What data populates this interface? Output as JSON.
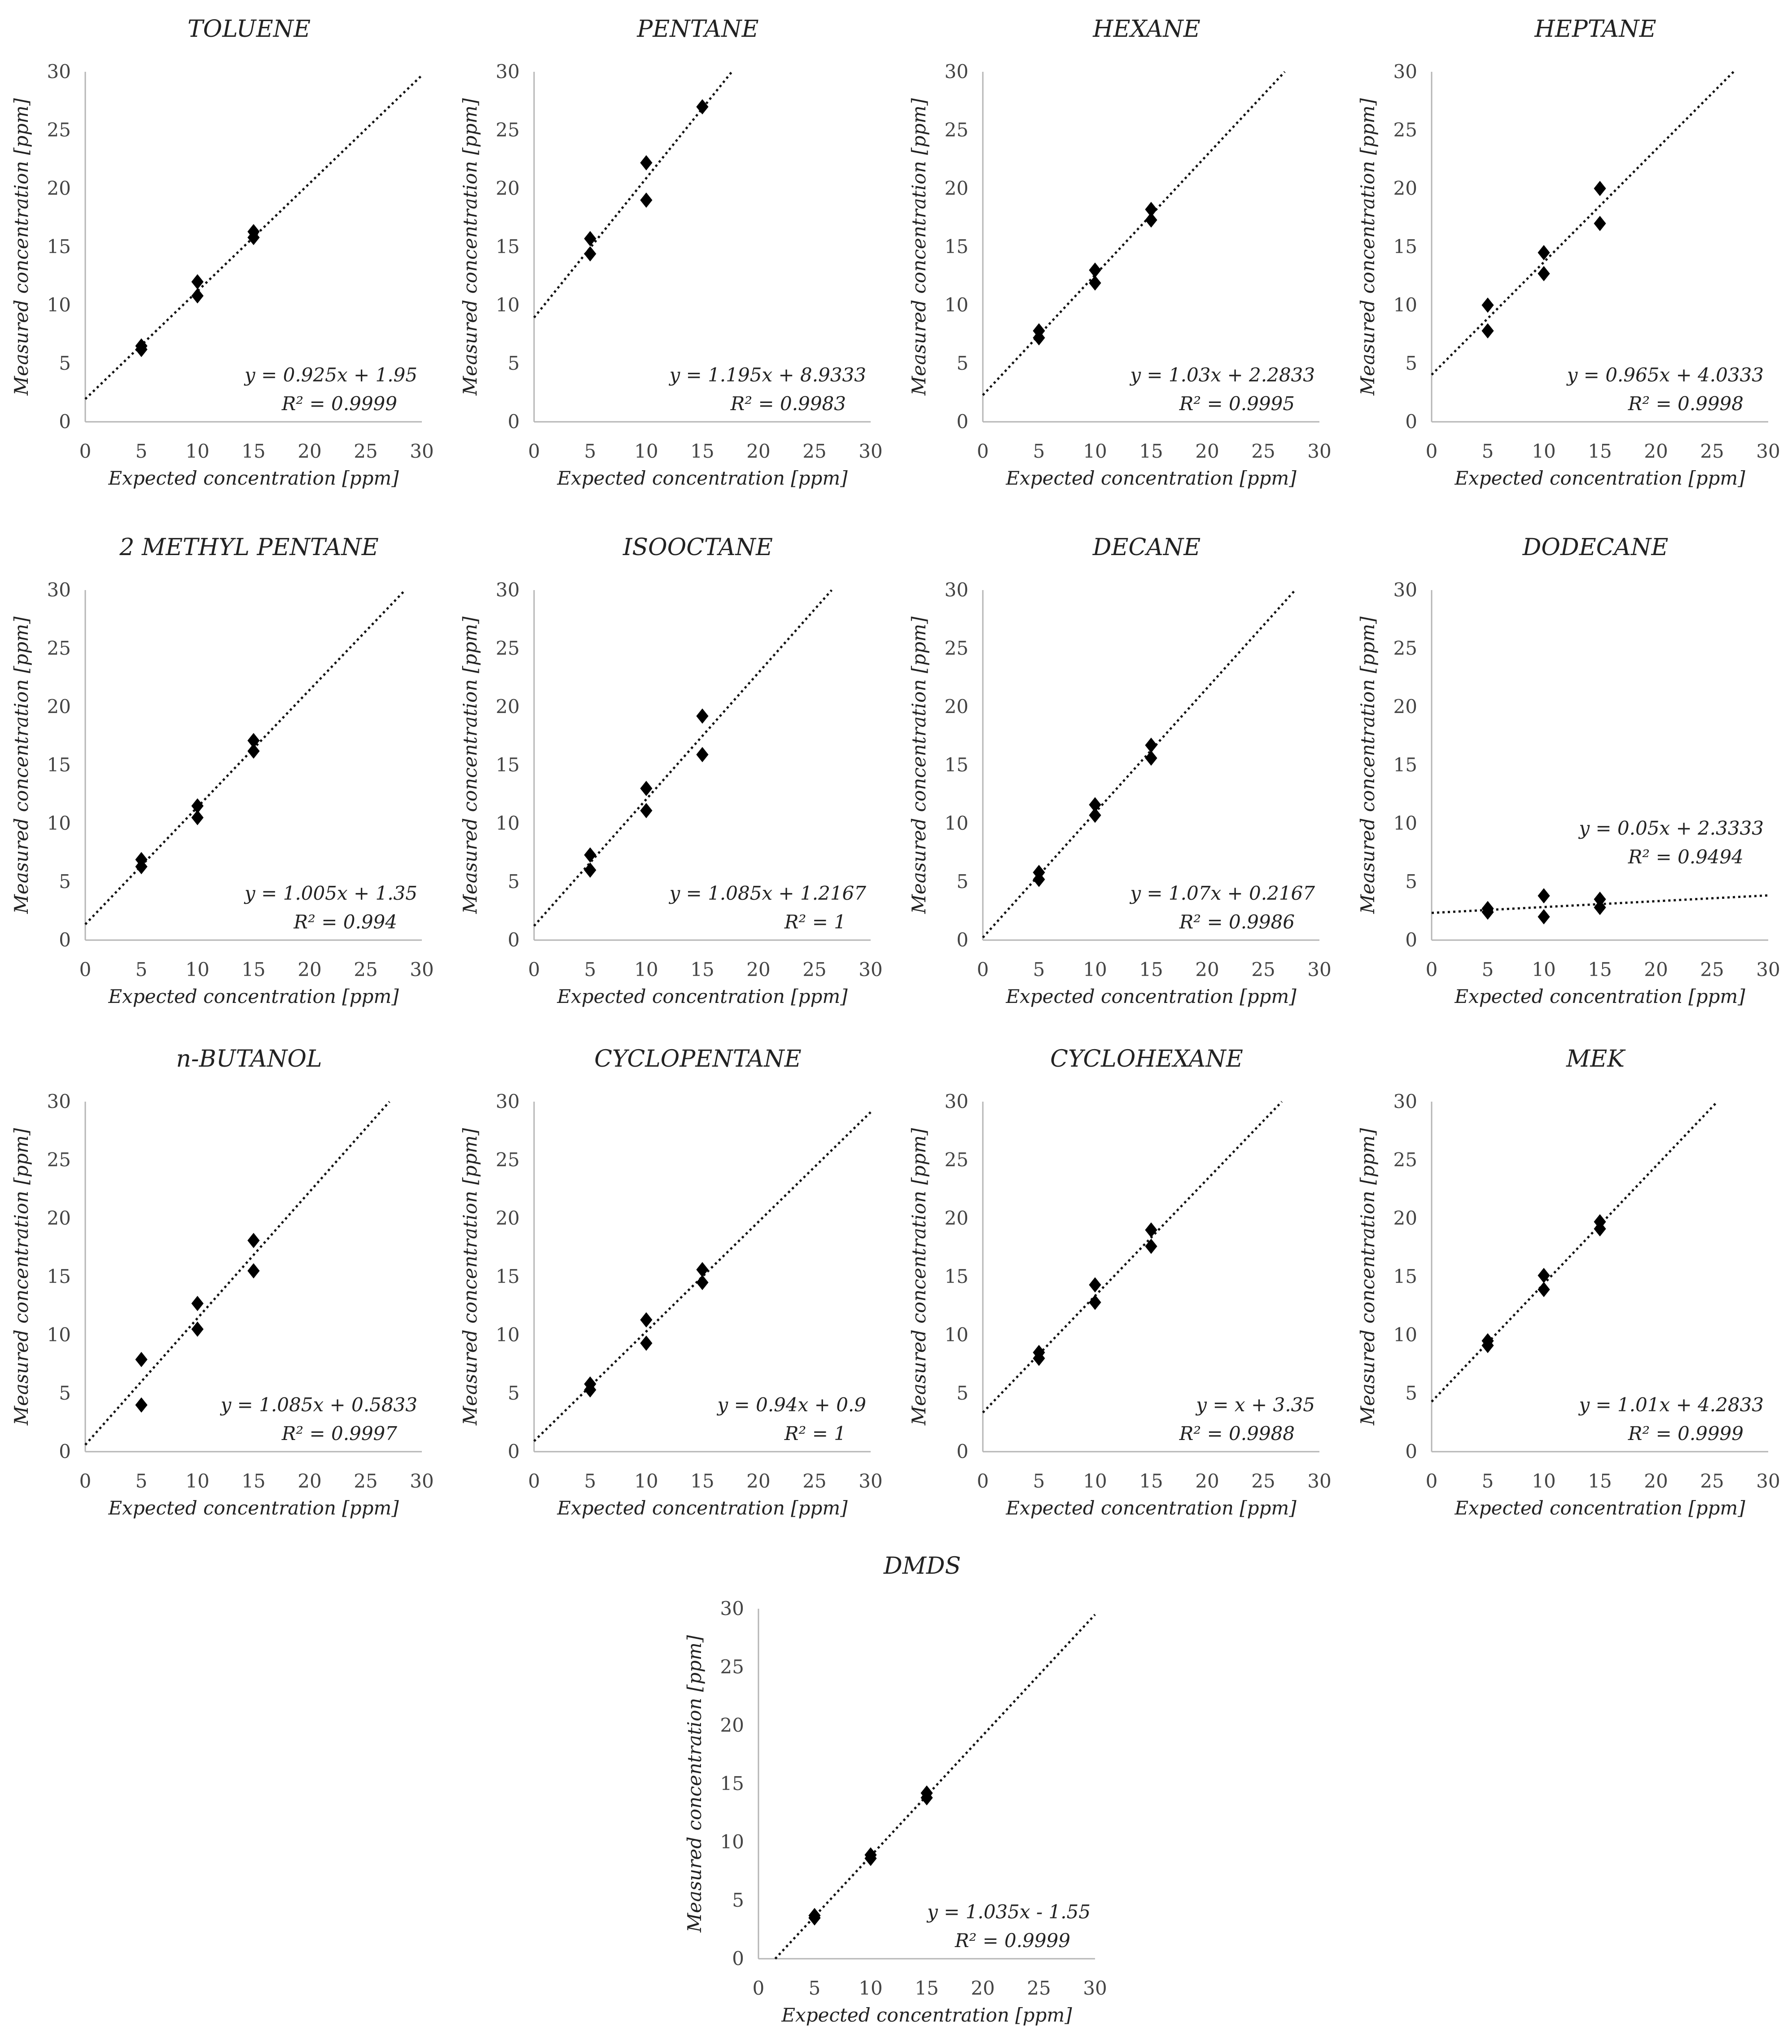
{
  "figure": {
    "x_axis_label": "Expected concentration [ppm]",
    "y_axis_label": "Measured concentration [ppm]"
  },
  "chart_data": [
    {
      "type": "scatter",
      "title": "TOLUENE",
      "xlabel": "Expected concentration [ppm]",
      "ylabel": "Measured concentration [ppm]",
      "xlim": [
        0,
        30
      ],
      "ylim": [
        0,
        30
      ],
      "xticks": [
        0,
        5,
        10,
        15,
        20,
        25,
        30
      ],
      "yticks": [
        0,
        5,
        10,
        15,
        20,
        25,
        30
      ],
      "series": [
        {
          "values": [
            [
              5,
              6.5
            ],
            [
              5,
              6.2
            ],
            [
              10,
              12.0
            ],
            [
              10,
              10.8
            ],
            [
              15,
              16.3
            ],
            [
              15,
              15.8
            ]
          ]
        }
      ],
      "trendline": {
        "slope": 0.925,
        "intercept": 1.95,
        "equation": "y = 0.925x + 1.95",
        "r2": "R² = 0.9999"
      }
    },
    {
      "type": "scatter",
      "title": "PENTANE",
      "xlabel": "Expected concentration [ppm]",
      "ylabel": "Measured concentration [ppm]",
      "xlim": [
        0,
        30
      ],
      "ylim": [
        0,
        30
      ],
      "xticks": [
        0,
        5,
        10,
        15,
        20,
        25,
        30
      ],
      "yticks": [
        0,
        5,
        10,
        15,
        20,
        25,
        30
      ],
      "series": [
        {
          "values": [
            [
              5,
              15.7
            ],
            [
              5,
              14.4
            ],
            [
              10,
              22.2
            ],
            [
              10,
              19.0
            ],
            [
              15,
              27.0
            ]
          ]
        }
      ],
      "trendline": {
        "slope": 1.195,
        "intercept": 8.9333,
        "equation": "y = 1.195x + 8.9333",
        "r2": "R² = 0.9983"
      }
    },
    {
      "type": "scatter",
      "title": "HEXANE",
      "xlabel": "Expected concentration [ppm]",
      "ylabel": "Measured concentration [ppm]",
      "xlim": [
        0,
        30
      ],
      "ylim": [
        0,
        30
      ],
      "xticks": [
        0,
        5,
        10,
        15,
        20,
        25,
        30
      ],
      "yticks": [
        0,
        5,
        10,
        15,
        20,
        25,
        30
      ],
      "series": [
        {
          "values": [
            [
              5,
              7.8
            ],
            [
              5,
              7.2
            ],
            [
              10,
              13.0
            ],
            [
              10,
              11.9
            ],
            [
              15,
              18.2
            ],
            [
              15,
              17.3
            ]
          ]
        }
      ],
      "trendline": {
        "slope": 1.03,
        "intercept": 2.2833,
        "equation": "y = 1.03x + 2.2833",
        "r2": "R² = 0.9995"
      }
    },
    {
      "type": "scatter",
      "title": "HEPTANE",
      "xlabel": "Expected concentration [ppm]",
      "ylabel": "Measured concentration [ppm]",
      "xlim": [
        0,
        30
      ],
      "ylim": [
        0,
        30
      ],
      "xticks": [
        0,
        5,
        10,
        15,
        20,
        25,
        30
      ],
      "yticks": [
        0,
        5,
        10,
        15,
        20,
        25,
        30
      ],
      "series": [
        {
          "values": [
            [
              5,
              10.0
            ],
            [
              5,
              7.8
            ],
            [
              10,
              14.5
            ],
            [
              10,
              12.7
            ],
            [
              15,
              20.0
            ],
            [
              15,
              17.0
            ]
          ]
        }
      ],
      "trendline": {
        "slope": 0.965,
        "intercept": 4.0333,
        "equation": "y = 0.965x + 4.0333",
        "r2": "R² = 0.9998"
      }
    },
    {
      "type": "scatter",
      "title": "2 METHYL PENTANE",
      "xlabel": "Expected concentration [ppm]",
      "ylabel": "Measured concentration [ppm]",
      "xlim": [
        0,
        30
      ],
      "ylim": [
        0,
        30
      ],
      "xticks": [
        0,
        5,
        10,
        15,
        20,
        25,
        30
      ],
      "yticks": [
        0,
        5,
        10,
        15,
        20,
        25,
        30
      ],
      "series": [
        {
          "values": [
            [
              5,
              6.9
            ],
            [
              5,
              6.3
            ],
            [
              10,
              11.5
            ],
            [
              10,
              10.5
            ],
            [
              15,
              17.1
            ],
            [
              15,
              16.2
            ]
          ]
        }
      ],
      "trendline": {
        "slope": 1.005,
        "intercept": 1.35,
        "equation": "y = 1.005x + 1.35",
        "r2": "R² = 0.994"
      }
    },
    {
      "type": "scatter",
      "title": "ISOOCTANE",
      "xlabel": "Expected concentration [ppm]",
      "ylabel": "Measured concentration [ppm]",
      "xlim": [
        0,
        30
      ],
      "ylim": [
        0,
        30
      ],
      "xticks": [
        0,
        5,
        10,
        15,
        20,
        25,
        30
      ],
      "yticks": [
        0,
        5,
        10,
        15,
        20,
        25,
        30
      ],
      "series": [
        {
          "values": [
            [
              5,
              7.3
            ],
            [
              5,
              6.0
            ],
            [
              10,
              13.0
            ],
            [
              10,
              11.1
            ],
            [
              15,
              19.2
            ],
            [
              15,
              15.9
            ]
          ]
        }
      ],
      "trendline": {
        "slope": 1.085,
        "intercept": 1.2167,
        "equation": "y = 1.085x + 1.2167",
        "r2": "R² = 1"
      }
    },
    {
      "type": "scatter",
      "title": "DECANE",
      "xlabel": "Expected concentration [ppm]",
      "ylabel": "Measured concentration [ppm]",
      "xlim": [
        0,
        30
      ],
      "ylim": [
        0,
        30
      ],
      "xticks": [
        0,
        5,
        10,
        15,
        20,
        25,
        30
      ],
      "yticks": [
        0,
        5,
        10,
        15,
        20,
        25,
        30
      ],
      "series": [
        {
          "values": [
            [
              5,
              5.8
            ],
            [
              5,
              5.2
            ],
            [
              10,
              11.6
            ],
            [
              10,
              10.7
            ],
            [
              15,
              16.7
            ],
            [
              15,
              15.6
            ]
          ]
        }
      ],
      "trendline": {
        "slope": 1.07,
        "intercept": 0.2167,
        "equation": "y = 1.07x + 0.2167",
        "r2": "R² = 0.9986"
      }
    },
    {
      "type": "scatter",
      "title": "DODECANE",
      "xlabel": "Expected concentration [ppm]",
      "ylabel": "Measured concentration [ppm]",
      "xlim": [
        0,
        30
      ],
      "ylim": [
        0,
        30
      ],
      "xticks": [
        0,
        5,
        10,
        15,
        20,
        25,
        30
      ],
      "yticks": [
        0,
        5,
        10,
        15,
        20,
        25,
        30
      ],
      "series": [
        {
          "values": [
            [
              5,
              2.7
            ],
            [
              5,
              2.4
            ],
            [
              10,
              3.8
            ],
            [
              10,
              2.0
            ],
            [
              15,
              3.5
            ],
            [
              15,
              2.8
            ]
          ]
        }
      ],
      "trendline": {
        "slope": 0.05,
        "intercept": 2.3333,
        "equation": "y = 0.05x + 2.3333",
        "r2": "R² = 0.9494"
      }
    },
    {
      "type": "scatter",
      "title": "n-BUTANOL",
      "xlabel": "Expected concentration [ppm]",
      "ylabel": "Measured concentration [ppm]",
      "xlim": [
        0,
        30
      ],
      "ylim": [
        0,
        30
      ],
      "xticks": [
        0,
        5,
        10,
        15,
        20,
        25,
        30
      ],
      "yticks": [
        0,
        5,
        10,
        15,
        20,
        25,
        30
      ],
      "series": [
        {
          "values": [
            [
              5,
              7.9
            ],
            [
              5,
              4.0
            ],
            [
              10,
              12.7
            ],
            [
              10,
              10.5
            ],
            [
              15,
              18.1
            ],
            [
              15,
              15.5
            ]
          ]
        }
      ],
      "trendline": {
        "slope": 1.085,
        "intercept": 0.5833,
        "equation": "y = 1.085x + 0.5833",
        "r2": "R² = 0.9997"
      }
    },
    {
      "type": "scatter",
      "title": "CYCLOPENTANE",
      "xlabel": "Expected concentration [ppm]",
      "ylabel": "Measured concentration [ppm]",
      "xlim": [
        0,
        30
      ],
      "ylim": [
        0,
        30
      ],
      "xticks": [
        0,
        5,
        10,
        15,
        20,
        25,
        30
      ],
      "yticks": [
        0,
        5,
        10,
        15,
        20,
        25,
        30
      ],
      "series": [
        {
          "values": [
            [
              5,
              5.8
            ],
            [
              5,
              5.3
            ],
            [
              10,
              11.3
            ],
            [
              10,
              9.3
            ],
            [
              15,
              15.6
            ],
            [
              15,
              14.5
            ]
          ]
        }
      ],
      "trendline": {
        "slope": 0.94,
        "intercept": 0.9,
        "equation": "y = 0.94x + 0.9",
        "r2": "R² = 1"
      }
    },
    {
      "type": "scatter",
      "title": "CYCLOHEXANE",
      "xlabel": "Expected concentration [ppm]",
      "ylabel": "Measured concentration [ppm]",
      "xlim": [
        0,
        30
      ],
      "ylim": [
        0,
        30
      ],
      "xticks": [
        0,
        5,
        10,
        15,
        20,
        25,
        30
      ],
      "yticks": [
        0,
        5,
        10,
        15,
        20,
        25,
        30
      ],
      "series": [
        {
          "values": [
            [
              5,
              8.5
            ],
            [
              5,
              8.0
            ],
            [
              10,
              14.3
            ],
            [
              10,
              12.8
            ],
            [
              15,
              19.0
            ],
            [
              15,
              17.6
            ]
          ]
        }
      ],
      "trendline": {
        "slope": 1.0,
        "intercept": 3.35,
        "equation": "y = x + 3.35",
        "r2": "R² = 0.9988"
      }
    },
    {
      "type": "scatter",
      "title": "MEK",
      "xlabel": "Expected concentration [ppm]",
      "ylabel": "Measured concentration [ppm]",
      "xlim": [
        0,
        30
      ],
      "ylim": [
        0,
        30
      ],
      "xticks": [
        0,
        5,
        10,
        15,
        20,
        25,
        30
      ],
      "yticks": [
        0,
        5,
        10,
        15,
        20,
        25,
        30
      ],
      "series": [
        {
          "values": [
            [
              5,
              9.5
            ],
            [
              5,
              9.1
            ],
            [
              10,
              15.1
            ],
            [
              10,
              13.9
            ],
            [
              15,
              19.7
            ],
            [
              15,
              19.1
            ]
          ]
        }
      ],
      "trendline": {
        "slope": 1.01,
        "intercept": 4.2833,
        "equation": "y = 1.01x + 4.2833",
        "r2": "R² = 0.9999"
      }
    },
    {
      "type": "scatter",
      "title": "DMDS",
      "xlabel": "Expected concentration [ppm]",
      "ylabel": "Measured concentration [ppm]",
      "xlim": [
        0,
        30
      ],
      "ylim": [
        0,
        30
      ],
      "xticks": [
        0,
        5,
        10,
        15,
        20,
        25,
        30
      ],
      "yticks": [
        0,
        5,
        10,
        15,
        20,
        25,
        30
      ],
      "series": [
        {
          "values": [
            [
              5,
              3.7
            ],
            [
              5,
              3.5
            ],
            [
              10,
              8.9
            ],
            [
              10,
              8.6
            ],
            [
              15,
              14.2
            ],
            [
              15,
              13.8
            ]
          ]
        }
      ],
      "trendline": {
        "slope": 1.035,
        "intercept": -1.55,
        "equation": "y = 1.035x - 1.55",
        "r2": "R² = 0.9999"
      }
    }
  ]
}
